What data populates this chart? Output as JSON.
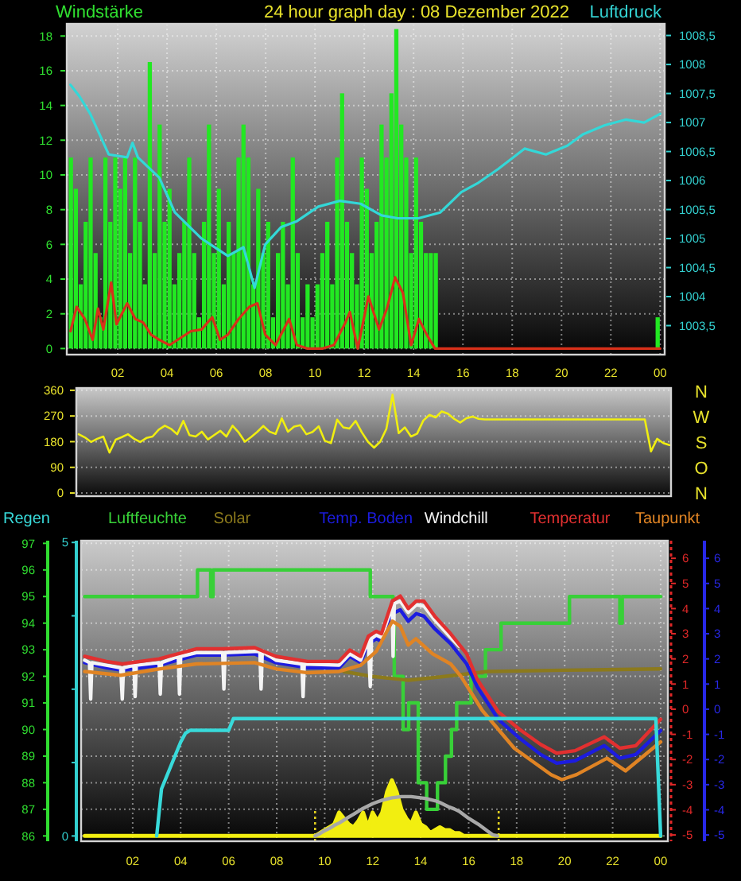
{
  "chart_data": [
    {
      "type": "bar",
      "title": "24 hour graph day : 08 Dezember 2022",
      "ylabel": "Windstärke",
      "y2label": "Luftdruck",
      "xlim": [
        "2022-12-07T23:56",
        "2022-12-09T00:11"
      ],
      "xticks": [
        {
          "value": "2022-12-08T02:00",
          "label": "02"
        },
        {
          "value": "2022-12-08T04:00",
          "label": "04"
        },
        {
          "value": "2022-12-08T06:00",
          "label": "06"
        },
        {
          "value": "2022-12-08T08:00",
          "label": "08"
        },
        {
          "value": "2022-12-08T10:00",
          "label": "10"
        },
        {
          "value": "2022-12-08T12:00",
          "label": "12"
        },
        {
          "value": "2022-12-08T14:00",
          "label": "14"
        },
        {
          "value": "2022-12-08T16:00",
          "label": "16"
        },
        {
          "value": "2022-12-08T18:00",
          "label": "18"
        },
        {
          "value": "2022-12-08T20:00",
          "label": "20"
        },
        {
          "value": "2022-12-08T22:00",
          "label": "22"
        },
        {
          "value": "2022-12-09T00:00",
          "label": "00"
        }
      ],
      "ylim": [
        -0.35,
        18.7
      ],
      "yticks": [
        0,
        2,
        4,
        6,
        8,
        10,
        12,
        14,
        16,
        18
      ],
      "y2lim": [
        1003,
        1008.7
      ],
      "y2ticks": [
        {
          "value": 1003.5,
          "label": "1003,5"
        },
        1004,
        {
          "value": 1004.5,
          "label": "1004,5"
        },
        1005,
        {
          "value": 1005.5,
          "label": "1005,5"
        },
        1006,
        {
          "value": 1006.5,
          "label": "1006,5"
        },
        1007,
        {
          "value": 1007.5,
          "label": "1007,5"
        },
        1008,
        {
          "value": 1008.5,
          "label": "1008,5"
        }
      ],
      "grid": true,
      "series": [
        {
          "color": "#22e822",
          "x": [
            "2022-12-08T00:06",
            "2022-12-08T00:18",
            "2022-12-08T00:30",
            "2022-12-08T00:42",
            "2022-12-08T00:54",
            "2022-12-08T01:06",
            "2022-12-08T01:18",
            "2022-12-08T01:30",
            "2022-12-08T01:42",
            "2022-12-08T01:54",
            "2022-12-08T02:06",
            "2022-12-08T02:18",
            "2022-12-08T02:30",
            "2022-12-08T02:42",
            "2022-12-08T02:54",
            "2022-12-08T03:06",
            "2022-12-08T03:18",
            "2022-12-08T03:30",
            "2022-12-08T03:42",
            "2022-12-08T03:54",
            "2022-12-08T04:06",
            "2022-12-08T04:18",
            "2022-12-08T04:30",
            "2022-12-08T04:42",
            "2022-12-08T04:54",
            "2022-12-08T05:06",
            "2022-12-08T05:18",
            "2022-12-08T05:30",
            "2022-12-08T05:42",
            "2022-12-08T05:54",
            "2022-12-08T06:06",
            "2022-12-08T06:18",
            "2022-12-08T06:30",
            "2022-12-08T06:42",
            "2022-12-08T06:54",
            "2022-12-08T07:06",
            "2022-12-08T07:18",
            "2022-12-08T07:30",
            "2022-12-08T07:42",
            "2022-12-08T07:54",
            "2022-12-08T08:06",
            "2022-12-08T08:18",
            "2022-12-08T08:30",
            "2022-12-08T08:42",
            "2022-12-08T08:54",
            "2022-12-08T09:06",
            "2022-12-08T09:18",
            "2022-12-08T09:30",
            "2022-12-08T09:42",
            "2022-12-08T09:54",
            "2022-12-08T10:06",
            "2022-12-08T10:18",
            "2022-12-08T10:30",
            "2022-12-08T10:42",
            "2022-12-08T10:54",
            "2022-12-08T11:06",
            "2022-12-08T11:18",
            "2022-12-08T11:30",
            "2022-12-08T11:42",
            "2022-12-08T11:54",
            "2022-12-08T12:06",
            "2022-12-08T12:18",
            "2022-12-08T12:30",
            "2022-12-08T12:42",
            "2022-12-08T12:54",
            "2022-12-08T13:06",
            "2022-12-08T13:18",
            "2022-12-08T13:30",
            "2022-12-08T13:42",
            "2022-12-08T13:54",
            "2022-12-08T14:06",
            "2022-12-08T14:18",
            "2022-12-08T14:30",
            "2022-12-08T14:42",
            "2022-12-08T14:54",
            "2022-12-08T23:54"
          ],
          "values": [
            11,
            9.2,
            3.7,
            7.3,
            11,
            5.5,
            1.8,
            11,
            7.3,
            11,
            9.2,
            11,
            5.5,
            11,
            7.3,
            3.7,
            16.5,
            5.5,
            12.9,
            7.3,
            9.2,
            3.7,
            5.5,
            7.3,
            11,
            5.5,
            1.8,
            7.3,
            12.9,
            5.5,
            9.2,
            3.7,
            7.3,
            5.5,
            11,
            12.9,
            11,
            3.7,
            9.2,
            5.5,
            7.3,
            1.8,
            5.5,
            7.3,
            3.7,
            11,
            5.5,
            1.8,
            3.7,
            1.8,
            3.7,
            5.5,
            7.3,
            3.7,
            11,
            14.7,
            7.3,
            5.5,
            3.7,
            11,
            9.2,
            5.5,
            7.3,
            12.9,
            11,
            14.7,
            18.4,
            12.9,
            11,
            5.5,
            11,
            7.3,
            5.5,
            5.5,
            5.5,
            1.8
          ]
        },
        {
          "type": "line",
          "color": "#d8301a",
          "x": [
            "2022-12-08T00:05",
            "2022-12-08T00:20",
            "2022-12-08T00:40",
            "2022-12-08T00:59",
            "2022-12-08T01:12",
            "2022-12-08T01:25",
            "2022-12-08T01:44",
            "2022-12-08T01:57",
            "2022-12-08T02:23",
            "2022-12-08T02:43",
            "2022-12-08T03:02",
            "2022-12-08T03:21",
            "2022-12-08T03:41",
            "2022-12-08T04:06",
            "2022-12-08T04:32",
            "2022-12-08T04:58",
            "2022-12-08T05:24",
            "2022-12-08T05:50",
            "2022-12-08T06:09",
            "2022-12-08T06:28",
            "2022-12-08T06:54",
            "2022-12-08T07:20",
            "2022-12-08T07:40",
            "2022-12-08T07:59",
            "2022-12-08T08:24",
            "2022-12-08T08:57",
            "2022-12-08T09:16",
            "2022-12-08T09:42",
            "2022-12-08T10:18",
            "2022-12-08T10:46",
            "2022-12-08T11:12",
            "2022-12-08T11:25",
            "2022-12-08T11:44",
            "2022-12-08T12:10",
            "2022-12-08T12:36",
            "2022-12-08T12:55",
            "2022-12-08T13:15",
            "2022-12-08T13:34",
            "2022-12-08T13:54",
            "2022-12-08T14:13",
            "2022-12-08T14:32",
            "2022-12-08T14:52",
            "2022-12-09T00:00"
          ],
          "values": [
            1,
            2.4,
            1.7,
            0.5,
            2.3,
            1.1,
            3.8,
            1.4,
            2.6,
            1.7,
            1.5,
            0.8,
            0.5,
            0.2,
            0.6,
            1,
            1.1,
            1.8,
            0.5,
            0.8,
            1.7,
            2.4,
            2.6,
            0.8,
            0.2,
            1.7,
            0.2,
            0,
            0,
            0.2,
            1.4,
            2.1,
            0,
            3,
            1.1,
            2.3,
            4.1,
            3.2,
            0.2,
            1.7,
            0.8,
            0,
            0
          ]
        },
        {
          "type": "line",
          "axis": "y2",
          "color": "#33d8d8",
          "x": [
            "2022-12-08T00:05",
            "2022-12-08T00:27",
            "2022-12-08T00:53",
            "2022-12-08T01:38",
            "2022-12-08T02:23",
            "2022-12-08T02:36",
            "2022-12-08T02:49",
            "2022-12-08T03:41",
            "2022-12-08T04:19",
            "2022-12-08T05:24",
            "2022-12-08T06:28",
            "2022-12-08T07:06",
            "2022-12-08T07:33",
            "2022-12-08T07:59",
            "2022-12-08T08:38",
            "2022-12-08T09:16",
            "2022-12-08T10:08",
            "2022-12-08T11:00",
            "2022-12-08T11:51",
            "2022-12-08T12:42",
            "2022-12-08T13:21",
            "2022-12-08T14:12",
            "2022-12-08T15:05",
            "2022-12-08T15:56",
            "2022-12-08T16:35",
            "2022-12-08T17:26",
            "2022-12-08T18:30",
            "2022-12-08T19:22",
            "2022-12-08T20:14",
            "2022-12-08T20:53",
            "2022-12-08T21:44",
            "2022-12-08T22:36",
            "2022-12-08T23:21",
            "2022-12-09T00:00"
          ],
          "values": [
            1007.65,
            1007.45,
            1007.15,
            1006.45,
            1006.4,
            1006.65,
            1006.4,
            1006.05,
            1005.45,
            1005.0,
            1004.7,
            1004.85,
            1004.15,
            1004.9,
            1005.2,
            1005.3,
            1005.55,
            1005.65,
            1005.6,
            1005.4,
            1005.35,
            1005.35,
            1005.45,
            1005.8,
            1005.95,
            1006.2,
            1006.55,
            1006.45,
            1006.6,
            1006.8,
            1006.95,
            1007.05,
            1007.0,
            1007.15
          ]
        }
      ]
    },
    {
      "type": "line",
      "categories": [
        null,
        null,
        null,
        null,
        null,
        null,
        null,
        null,
        null,
        null,
        null,
        null,
        null,
        null,
        null,
        null,
        null,
        null,
        null,
        null,
        null,
        null,
        null,
        null,
        null,
        null,
        null,
        null,
        null,
        null,
        null,
        null,
        null,
        null,
        null,
        null,
        null,
        null,
        null,
        null,
        null,
        null,
        null,
        null,
        null,
        null,
        null,
        null,
        null,
        null,
        null,
        null,
        null,
        null,
        null,
        null,
        null,
        null,
        null,
        null,
        null,
        null,
        null,
        null,
        null,
        null,
        null,
        null,
        null,
        null,
        null,
        null,
        null,
        null,
        null,
        null,
        null,
        null,
        null,
        null,
        null,
        null,
        null,
        null,
        null,
        null,
        null,
        null,
        null,
        null,
        null,
        null,
        null,
        null,
        null,
        null,
        null
      ],
      "ylim": [
        -11,
        368
      ],
      "yticks": [
        0,
        90,
        180,
        270,
        360
      ],
      "grid": "y",
      "tick_labels": "y",
      "annotations": [
        "N",
        "W",
        "S",
        "O",
        "N"
      ],
      "series": [
        {
          "color": "#f0ee10",
          "values": [
            206,
            195,
            179,
            190,
            198,
            142,
            187,
            196,
            206,
            190,
            179,
            193,
            198,
            222,
            236,
            225,
            206,
            253,
            203,
            198,
            215,
            188,
            203,
            218,
            198,
            236,
            212,
            180,
            196,
            214,
            235,
            215,
            207,
            262,
            215,
            233,
            238,
            206,
            214,
            234,
            183,
            175,
            257,
            230,
            226,
            253,
            213,
            180,
            159,
            180,
            225,
            345,
            210,
            230,
            198,
            208,
            254,
            274,
            265,
            286,
            278,
            260,
            247,
            262,
            268,
            260,
            258,
            258,
            258,
            258,
            258,
            258,
            258,
            258,
            258,
            258,
            258,
            258,
            258,
            258,
            258,
            258,
            258,
            258,
            258,
            258,
            258,
            258,
            258,
            258,
            258,
            258,
            258,
            146,
            190,
            175,
            168
          ]
        }
      ]
    },
    {
      "type": "line",
      "xlim": [
        "2022-12-07T23:51",
        "2022-12-09T00:18"
      ],
      "xticks": [
        {
          "value": "2022-12-08T02:00",
          "label": "02"
        },
        {
          "value": "2022-12-08T04:00",
          "label": "04"
        },
        {
          "value": "2022-12-08T06:00",
          "label": "06"
        },
        {
          "value": "2022-12-08T08:00",
          "label": "08"
        },
        {
          "value": "2022-12-08T10:00",
          "label": "10"
        },
        {
          "value": "2022-12-08T12:00",
          "label": "12"
        },
        {
          "value": "2022-12-08T14:00",
          "label": "14"
        },
        {
          "value": "2022-12-08T16:00",
          "label": "16"
        },
        {
          "value": "2022-12-08T18:00",
          "label": "18"
        },
        {
          "value": "2022-12-08T20:00",
          "label": "20"
        },
        {
          "value": "2022-12-08T22:00",
          "label": "22"
        },
        {
          "value": "2022-12-09T00:00",
          "label": "00"
        }
      ],
      "ylim": [
        85.8,
        97.1
      ],
      "yticks": [
        86,
        87,
        88,
        89,
        90,
        91,
        92,
        93,
        94,
        95,
        96,
        97
      ],
      "y2lim": [
        -5.25,
        6.7
      ],
      "y2ticks": [
        -5,
        -4,
        -3,
        -2,
        -1,
        0,
        1,
        2,
        3,
        4,
        5,
        6
      ],
      "y3lim": [
        -5.25,
        6.7
      ],
      "y3ticks": [
        -5,
        -4,
        -3,
        -2,
        -1,
        0,
        1,
        2,
        3,
        4,
        5,
        6
      ],
      "grid": true,
      "legend": "top",
      "ref_lines": [
        {
          "axis": "x",
          "value": "2022-12-08T09:36",
          "color": "#e0d020",
          "line_style": "dotted"
        },
        {
          "axis": "x",
          "value": "2022-12-08T17:15",
          "color": "#e0d020",
          "line_style": "dotted"
        }
      ],
      "series": [
        {
          "name": "Luftfeuchte",
          "type": "step",
          "color": "#38d038",
          "x": [
            "2022-12-08T00:00",
            "2022-12-08T04:42",
            "2022-12-08T05:15",
            "2022-12-08T05:21",
            "2022-12-08T11:54",
            "2022-12-08T12:51",
            "2022-12-08T12:54",
            "2022-12-08T13:16",
            "2022-12-08T13:30",
            "2022-12-08T13:54",
            "2022-12-08T14:15",
            "2022-12-08T14:42",
            "2022-12-08T15:02",
            "2022-12-08T15:17",
            "2022-12-08T15:30",
            "2022-12-08T16:06",
            "2022-12-08T16:42",
            "2022-12-08T17:21",
            "2022-12-08T20:12",
            "2022-12-08T22:18",
            "2022-12-08T22:24",
            "2022-12-09T00:00"
          ],
          "values": [
            95,
            96,
            95,
            96,
            95,
            94,
            92,
            90,
            91,
            88,
            87,
            88,
            89,
            90,
            91,
            92,
            93,
            94,
            95,
            94,
            95,
            95
          ]
        },
        {
          "name": "Solar",
          "axis": "y2",
          "color": "#8c7a1c",
          "x": [
            "2022-12-08T10:48",
            "2022-12-08T12:00",
            "2022-12-08T13:30",
            "2022-12-08T15:00",
            "2022-12-08T16:48",
            "2022-12-08T20:00",
            "2022-12-09T00:00"
          ],
          "values": [
            1.5,
            1.3,
            1.15,
            1.3,
            1.5,
            1.55,
            1.6
          ]
        },
        {
          "name": "Temp. Boden",
          "axis": "y3",
          "color": "#1c1ce0",
          "x": [
            "2022-12-08T00:00",
            "2022-12-08T00:54",
            "2022-12-08T01:34",
            "2022-12-08T03:06",
            "2022-12-08T04:39",
            "2022-12-08T05:45",
            "2022-12-08T07:05",
            "2022-12-08T07:58",
            "2022-12-08T09:17",
            "2022-12-08T10:36",
            "2022-12-08T11:03",
            "2022-12-08T11:30",
            "2022-12-08T11:49",
            "2022-12-08T12:09",
            "2022-12-08T12:22",
            "2022-12-08T12:49",
            "2022-12-08T13:09",
            "2022-12-08T13:29",
            "2022-12-08T13:49",
            "2022-12-08T14:08",
            "2022-12-08T14:35",
            "2022-12-08T15:15",
            "2022-12-08T15:55",
            "2022-12-08T16:21",
            "2022-12-08T17:14",
            "2022-12-08T18:07",
            "2022-12-08T19:00",
            "2022-12-08T19:40",
            "2022-12-08T20:26",
            "2022-12-08T21:39",
            "2022-12-08T22:18",
            "2022-12-08T22:58",
            "2022-12-09T00:00"
          ],
          "values": [
            1.85,
            1.65,
            1.55,
            1.75,
            2.15,
            2.15,
            2.2,
            1.85,
            1.65,
            1.65,
            2.1,
            1.85,
            2.6,
            2.8,
            2.7,
            3.8,
            3.95,
            3.5,
            3.8,
            3.7,
            3.2,
            2.6,
            1.8,
            0.9,
            -0.4,
            -1.15,
            -1.8,
            -2.15,
            -2.05,
            -1.45,
            -1.95,
            -1.8,
            -0.85
          ]
        },
        {
          "name": "Windchill",
          "axis": "y2",
          "color": "#f4f4f4",
          "x": [
            "2022-12-08T00:00",
            "2022-12-08T00:12",
            "2022-12-08T00:15",
            "2022-12-08T00:18",
            "2022-12-08T00:54",
            "2022-12-08T01:30",
            "2022-12-08T01:34",
            "2022-12-08T01:37",
            "2022-12-08T02:03",
            "2022-12-08T02:06",
            "2022-12-08T02:09",
            "2022-12-08T03:06",
            "2022-12-08T03:09",
            "2022-12-08T03:12",
            "2022-12-08T03:54",
            "2022-12-08T03:57",
            "2022-12-08T04:00",
            "2022-12-08T04:39",
            "2022-12-08T05:45",
            "2022-12-08T05:48",
            "2022-12-08T05:51",
            "2022-12-08T07:05",
            "2022-12-08T07:18",
            "2022-12-08T07:21",
            "2022-12-08T07:24",
            "2022-12-08T07:58",
            "2022-12-08T09:03",
            "2022-12-08T09:06",
            "2022-12-08T09:09",
            "2022-12-08T10:36",
            "2022-12-08T11:03",
            "2022-12-08T11:30",
            "2022-12-08T11:49",
            "2022-12-08T11:54",
            "2022-12-08T11:57",
            "2022-12-08T12:09",
            "2022-12-08T12:22",
            "2022-12-08T12:49",
            "2022-12-08T12:51",
            "2022-12-08T12:54",
            "2022-12-08T13:09",
            "2022-12-08T13:29",
            "2022-12-08T13:49",
            "2022-12-08T14:08",
            "2022-12-08T14:35",
            "2022-12-08T15:15",
            "2022-12-08T15:36"
          ],
          "values": [
            1.95,
            1.85,
            0.4,
            1.85,
            1.75,
            1.65,
            0.4,
            1.65,
            1.75,
            0.5,
            1.75,
            1.85,
            0.6,
            1.85,
            2.1,
            0.6,
            2.1,
            2.25,
            2.25,
            0.8,
            2.25,
            2.3,
            2.3,
            0.8,
            2.3,
            1.95,
            1.8,
            0.5,
            1.8,
            1.75,
            2.2,
            1.95,
            2.75,
            0.9,
            2.8,
            2.95,
            2.85,
            4.1,
            2.1,
            4.2,
            4.3,
            3.85,
            4.15,
            4.1,
            3.55,
            2.85,
            2.5
          ]
        },
        {
          "name": "Temperatur",
          "axis": "y2",
          "color": "#e23030",
          "x": [
            "2022-12-08T00:00",
            "2022-12-08T00:54",
            "2022-12-08T01:34",
            "2022-12-08T03:06",
            "2022-12-08T04:39",
            "2022-12-08T05:45",
            "2022-12-08T07:05",
            "2022-12-08T07:58",
            "2022-12-08T09:17",
            "2022-12-08T10:36",
            "2022-12-08T11:03",
            "2022-12-08T11:30",
            "2022-12-08T11:49",
            "2022-12-08T12:09",
            "2022-12-08T12:22",
            "2022-12-08T12:49",
            "2022-12-08T13:09",
            "2022-12-08T13:29",
            "2022-12-08T13:49",
            "2022-12-08T14:08",
            "2022-12-08T14:35",
            "2022-12-08T15:15",
            "2022-12-08T15:55",
            "2022-12-08T16:21",
            "2022-12-08T17:14",
            "2022-12-08T18:07",
            "2022-12-08T19:00",
            "2022-12-08T19:40",
            "2022-12-08T20:26",
            "2022-12-08T21:39",
            "2022-12-08T22:18",
            "2022-12-08T22:58",
            "2022-12-09T00:00"
          ],
          "values": [
            2.1,
            1.9,
            1.8,
            2.0,
            2.4,
            2.4,
            2.45,
            2.1,
            1.9,
            1.9,
            2.35,
            2.1,
            2.9,
            3.1,
            3.0,
            4.3,
            4.5,
            4.0,
            4.3,
            4.3,
            3.7,
            3.0,
            2.2,
            1.2,
            -0.1,
            -0.8,
            -1.4,
            -1.75,
            -1.65,
            -1.1,
            -1.55,
            -1.45,
            -0.4
          ]
        },
        {
          "name": "Taupunkt",
          "axis": "y2",
          "color": "#e08424",
          "x": [
            "2022-12-08T00:00",
            "2022-12-08T01:30",
            "2022-12-08T03:06",
            "2022-12-08T04:39",
            "2022-12-08T07:05",
            "2022-12-08T08:00",
            "2022-12-08T09:18",
            "2022-12-08T10:36",
            "2022-12-08T11:30",
            "2022-12-08T12:09",
            "2022-12-08T12:49",
            "2022-12-08T13:09",
            "2022-12-08T13:29",
            "2022-12-08T13:48",
            "2022-12-08T14:30",
            "2022-12-08T15:15",
            "2022-12-08T15:41",
            "2022-12-08T16:34",
            "2022-12-08T17:54",
            "2022-12-08T19:26",
            "2022-12-08T19:53",
            "2022-12-08T20:30",
            "2022-12-08T21:46",
            "2022-12-08T22:32",
            "2022-12-09T00:00"
          ],
          "values": [
            1.5,
            1.35,
            1.6,
            1.8,
            1.85,
            1.6,
            1.45,
            1.5,
            1.75,
            2.3,
            3.5,
            3.3,
            2.55,
            2.8,
            2.2,
            1.8,
            1.3,
            -0.05,
            -1.55,
            -2.6,
            -2.8,
            -2.6,
            -1.95,
            -2.45,
            -1.3
          ]
        }
      ]
    },
    {
      "type": "line",
      "categories": [
        null,
        null,
        null,
        null,
        null,
        null,
        null,
        null,
        null,
        null,
        null,
        null,
        null,
        null,
        null,
        null,
        null,
        null,
        null,
        null,
        null,
        null,
        null,
        null,
        null,
        null,
        null,
        null,
        null,
        null,
        null,
        null,
        null,
        null,
        null,
        null,
        null,
        null,
        null,
        null,
        null,
        null,
        null,
        null,
        null,
        null,
        null,
        null,
        null,
        null,
        null,
        null,
        null,
        null,
        null,
        null,
        null,
        null,
        null,
        null,
        null,
        null,
        null,
        null,
        null,
        null,
        null,
        null,
        null,
        null,
        null,
        null,
        null,
        null,
        null,
        null,
        null,
        null,
        null,
        null,
        null,
        null,
        null,
        null,
        null,
        null,
        null,
        null,
        null,
        null,
        null,
        null,
        null,
        null,
        null,
        null,
        null,
        null,
        null,
        null,
        null,
        null,
        null,
        null,
        null,
        null,
        null,
        null,
        null,
        null,
        null,
        null,
        null,
        null,
        null,
        null,
        null,
        null,
        null,
        null,
        null
      ],
      "ylim": [
        -0.09,
        5.03
      ],
      "yticks": [
        0,
        {
          "value": 1.25,
          "label": null
        },
        {
          "value": 2.5,
          "label": null
        },
        {
          "value": 3.75,
          "label": null
        },
        5
      ],
      "tick_labels": "y",
      "legend": "top",
      "series": [
        {
          "type": "area",
          "color": "#f2ee10",
          "values": [
            0,
            0,
            0,
            0,
            0,
            0,
            0,
            0,
            0,
            0,
            0,
            0,
            0,
            0,
            0,
            0,
            0,
            0,
            0,
            0,
            0,
            0,
            0,
            0,
            0,
            0,
            0,
            0,
            0,
            0,
            0,
            0,
            0,
            0,
            0,
            0,
            0,
            0,
            0,
            0,
            0,
            0,
            0,
            0,
            0,
            0,
            0,
            0,
            0,
            0.05,
            0.1,
            0.15,
            0.2,
            0.4,
            0.3,
            0.2,
            0.15,
            0.25,
            0.4,
            0.15,
            0.4,
            0.25,
            0.4,
            0.75,
            0.95,
            0.75,
            0.45,
            0.3,
            0.2,
            0.4,
            0.2,
            0.15,
            0.05,
            0.1,
            0.15,
            0.1,
            0.1,
            0.05,
            0.05,
            0,
            0,
            0,
            0,
            0,
            0,
            0,
            0,
            0,
            0,
            0,
            0,
            0,
            0,
            0,
            0,
            0,
            0,
            0,
            0,
            0,
            0,
            0,
            0,
            0,
            0,
            0,
            0,
            0,
            0,
            0,
            0,
            0,
            0,
            0,
            0,
            0,
            0,
            0,
            0,
            0,
            0
          ]
        },
        {
          "color": "#a8a8a8",
          "values": [
            null,
            null,
            null,
            null,
            null,
            null,
            null,
            null,
            null,
            null,
            null,
            null,
            null,
            null,
            null,
            null,
            null,
            null,
            null,
            null,
            null,
            null,
            null,
            null,
            null,
            null,
            null,
            null,
            null,
            null,
            null,
            null,
            null,
            null,
            null,
            null,
            null,
            null,
            null,
            null,
            null,
            null,
            null,
            null,
            null,
            null,
            null,
            null,
            0,
            0.04,
            0.09,
            0.13,
            0.18,
            0.22,
            0.27,
            0.32,
            0.37,
            0.42,
            0.47,
            0.51,
            0.55,
            0.58,
            0.61,
            0.63,
            0.65,
            0.66,
            0.67,
            0.67,
            0.67,
            0.66,
            0.65,
            0.64,
            0.62,
            0.6,
            0.57,
            0.53,
            0.49,
            0.46,
            0.42,
            0.36,
            0.3,
            0.25,
            0.2,
            0.14,
            0.08,
            0.02,
            0,
            null,
            null,
            null,
            null,
            null,
            null,
            null,
            null,
            null,
            null,
            null,
            null,
            null,
            null,
            null,
            null,
            null,
            null,
            null,
            null,
            null,
            null,
            null,
            null,
            null,
            null,
            null,
            null,
            null,
            null,
            null,
            null,
            null,
            null
          ]
        },
        {
          "name": "Regen",
          "color": "#38dada",
          "values": [
            null,
            null,
            null,
            null,
            null,
            null,
            null,
            null,
            null,
            null,
            null,
            null,
            null,
            null,
            null,
            0,
            0.8,
            1.0,
            1.2,
            1.4,
            1.6,
            1.75,
            1.8,
            1.8,
            1.8,
            1.8,
            1.8,
            1.8,
            1.8,
            1.8,
            1.8,
            2,
            2,
            2,
            2,
            2,
            2,
            2,
            2,
            2,
            2,
            2,
            2,
            2,
            2,
            2,
            2,
            2,
            2,
            2,
            2,
            2,
            2,
            2,
            2,
            2,
            2,
            2,
            2,
            2,
            2,
            2,
            2,
            2,
            2,
            2,
            2,
            2,
            2,
            2,
            2,
            2,
            2,
            2,
            2,
            2,
            2,
            2,
            2,
            2,
            2,
            2,
            2,
            2,
            2,
            2,
            2,
            2,
            2,
            2,
            2,
            2,
            2,
            2,
            2,
            2,
            2,
            2,
            2,
            2,
            2,
            2,
            2,
            2,
            2,
            2,
            2,
            2,
            2,
            2,
            2,
            2,
            2,
            2,
            2,
            2,
            2,
            2,
            2,
            2,
            0
          ]
        }
      ]
    }
  ]
}
